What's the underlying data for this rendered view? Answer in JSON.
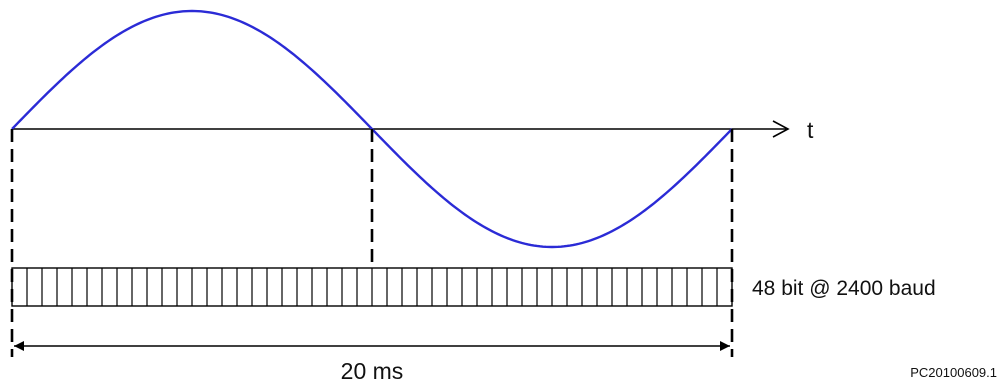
{
  "labels": {
    "axis": "t",
    "bits": "48 bit @ 2400 baud",
    "duration": "20 ms",
    "reference": "PC20100609.1"
  },
  "bit_frame": {
    "bit_count": 48
  },
  "colors": {
    "sine_wave": "#2b2bd6",
    "lines": "#000000"
  }
}
